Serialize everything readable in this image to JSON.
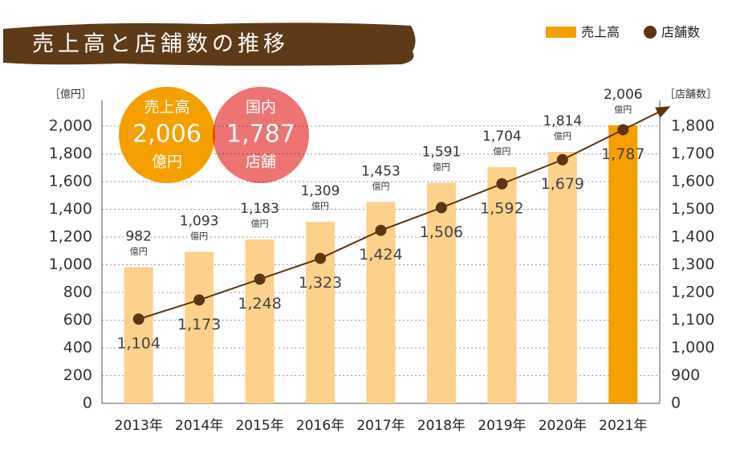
{
  "chart_data": {
    "type": "bar",
    "title": "売上高と店舗数の推移",
    "legend": "top-right",
    "y_label": "［億円］",
    "y2_label": "［店舗数］",
    "categories": [
      "2013年",
      "2014年",
      "2015年",
      "2016年",
      "2017年",
      "2018年",
      "2019年",
      "2020年",
      "2021年"
    ],
    "series": [
      {
        "name": "売上高",
        "type": "bar",
        "color": "#f5a000",
        "colors": [
          "#fcd18c",
          "#fcd18c",
          "#fcd18c",
          "#fcd18c",
          "#fcd18c",
          "#fcd18c",
          "#fcd18c",
          "#fcd18c",
          "#f5a000"
        ],
        "values": [
          982,
          1093,
          1183,
          1309,
          1453,
          1591,
          1704,
          1814,
          2006
        ],
        "value_labels": [
          "982",
          "1,093",
          "1,183",
          "1,309",
          "1,453",
          "1,591",
          "1,704",
          "1,814",
          "2,006"
        ],
        "value_unit": "億円"
      },
      {
        "name": "店舗数",
        "type": "line",
        "axis": "y2",
        "color": "#5c3512",
        "values": [
          1104,
          1173,
          1248,
          1323,
          1424,
          1506,
          1592,
          1679,
          1787
        ],
        "value_labels": [
          "1,104",
          "1,173",
          "1,248",
          "1,323",
          "1,424",
          "1,506",
          "1,592",
          "1,679",
          "1,787"
        ]
      }
    ],
    "ylim": [
      0,
      2000
    ],
    "yticks": [
      0,
      200,
      400,
      600,
      800,
      {
        "value": 1000,
        "label": "1,000"
      },
      {
        "value": 1200,
        "label": "1,200"
      },
      {
        "value": 1400,
        "label": "1,400"
      },
      {
        "value": 1600,
        "label": "1,600"
      },
      {
        "value": 1800,
        "label": "1,800"
      },
      {
        "value": 2000,
        "label": "2,000"
      }
    ],
    "y2lim": [
      800,
      1800
    ],
    "y2ticks": [
      {
        "value": 800,
        "label": "0"
      },
      900,
      {
        "value": 1000,
        "label": "1,000"
      },
      {
        "value": 1100,
        "label": "1,100"
      },
      {
        "value": 1200,
        "label": "1,200"
      },
      {
        "value": 1300,
        "label": "1,300"
      },
      {
        "value": 1400,
        "label": "1,400"
      },
      {
        "value": 1500,
        "label": "1,500"
      },
      {
        "value": 1600,
        "label": "1,600"
      },
      {
        "value": 1700,
        "label": "1,700"
      },
      {
        "value": 1800,
        "label": "1,800"
      }
    ],
    "grid": true,
    "annotations": [
      {
        "lines": [
          "売上高",
          "2,006",
          "億円"
        ],
        "color": "#f5a000"
      },
      {
        "lines": [
          "国内",
          "1,787",
          "店舗"
        ],
        "color": "#ee7474"
      }
    ]
  }
}
